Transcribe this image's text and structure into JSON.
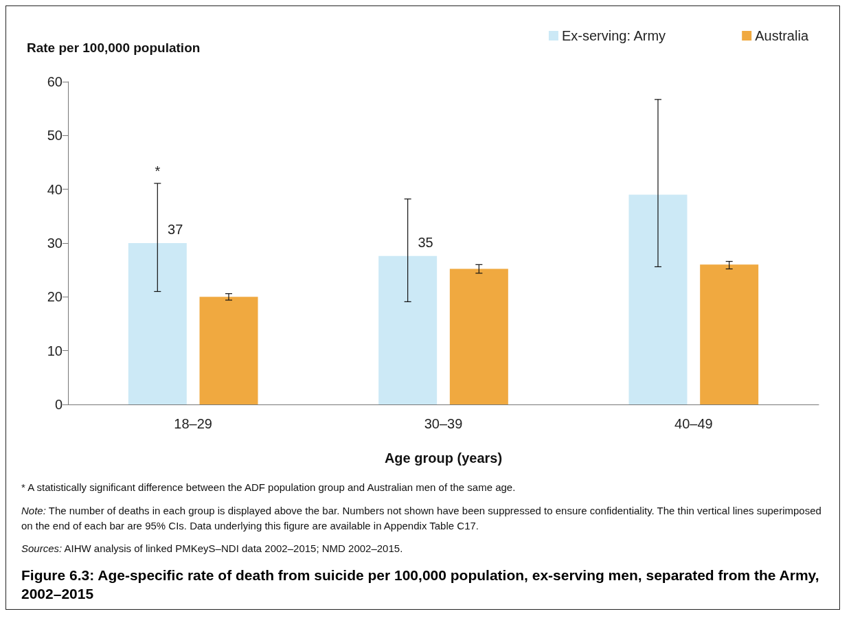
{
  "chart_data": {
    "type": "bar",
    "title": "Figure 6.3: Age-specific rate of death from suicide per 100,000 population, ex-serving men, separated from the Army, 2002–2015",
    "xlabel": "Age group (years)",
    "ylabel": "Rate per 100,000 population",
    "categories": [
      "18–29",
      "30–39",
      "40–49"
    ],
    "series": [
      {
        "name": "Ex-serving: Army",
        "color": "#cce9f6",
        "values": [
          30,
          27.6,
          39
        ],
        "errors": [
          [
            21,
            41.1
          ],
          [
            19.1,
            38.2
          ],
          [
            25.6,
            56.7
          ]
        ]
      },
      {
        "name": "Australia",
        "color": "#f0a940",
        "values": [
          20,
          25.2,
          26
        ],
        "errors": [
          [
            19.4,
            20.6
          ],
          [
            24.4,
            26
          ],
          [
            25.2,
            26.6
          ]
        ]
      }
    ],
    "ylim": [
      0,
      60
    ],
    "yticks": [
      0,
      10,
      20,
      30,
      40,
      50,
      60
    ],
    "grid": false,
    "legend": "top right",
    "annotations": [
      "*",
      "37",
      "35",
      "* A statistically significant difference between the ADF population group and Australian men of the same age.",
      "Note: The number of deaths in each group is displayed above the bar. Numbers not shown have been suppressed to ensure confidentiality. The thin vertical lines superimposed on the end of each bar are 95% CIs. Data underlying this figure are available in Appendix Table C17.",
      "Sources: AIHW analysis of linked PMKeyS–NDI data 2002–2015; NMD 2002–2015."
    ]
  }
}
